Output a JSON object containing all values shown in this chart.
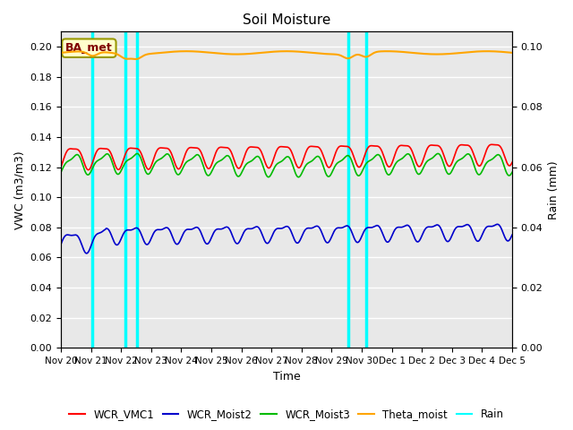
{
  "title": "Soil Moisture",
  "xlabel": "Time",
  "ylabel_left": "VWC (m3/m3)",
  "ylabel_right": "Rain (mm)",
  "ylim_left": [
    0.0,
    0.21
  ],
  "ylim_right": [
    0.0,
    0.105
  ],
  "yticks_left": [
    0.0,
    0.02,
    0.04,
    0.06,
    0.08,
    0.1,
    0.12,
    0.14,
    0.16,
    0.18,
    0.2
  ],
  "yticks_right": [
    0.0,
    0.02,
    0.04,
    0.06,
    0.08,
    0.1
  ],
  "xtick_labels": [
    "Nov 20",
    "Nov 21",
    "Nov 22",
    "Nov 23",
    "Nov 24",
    "Nov 25",
    "Nov 26",
    "Nov 27",
    "Nov 28",
    "Nov 29",
    "Nov 30",
    "Dec 1",
    "Dec 2",
    "Dec 3",
    "Dec 4",
    "Dec 5"
  ],
  "rain_lines_x": [
    1.05,
    2.15,
    2.52,
    9.55,
    10.15
  ],
  "bg_color": "#e8e8e8",
  "grid_color": "#ffffff",
  "annotation_text": "BA_met",
  "colors": {
    "WCR_VMC1": "#ff0000",
    "WCR_Moist2": "#0000cc",
    "WCR_Moist3": "#00bb00",
    "Theta_moist": "#ffa500",
    "Rain": "#00ffff"
  }
}
